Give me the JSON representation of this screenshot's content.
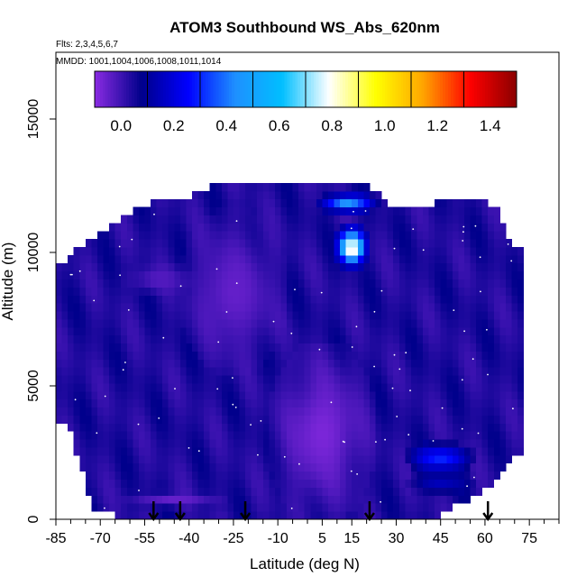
{
  "chart_data": {
    "type": "heatmap",
    "title": "ATOM3 Southbound WS_Abs_620nm",
    "subtitle_flights": "Flts: 2,3,4,5,6,7",
    "subtitle_dates": "MMDD: 1001,1004,1006,1008,1011,1014",
    "xlabel": "Latitude (deg N)",
    "ylabel": "Altitude (m)",
    "xlim": [
      -85,
      85
    ],
    "ylim": [
      0,
      17500
    ],
    "x_ticks": [
      "-85",
      "-70",
      "-55",
      "-40",
      "-25",
      "-10",
      "5",
      "15",
      "30",
      "45",
      "60",
      "75"
    ],
    "x_tick_values": [
      -85,
      -70,
      -55,
      -40,
      -25,
      -10,
      5,
      15,
      30,
      45,
      60,
      75
    ],
    "y_ticks": [
      "0",
      "5000",
      "10000",
      "15000"
    ],
    "y_tick_values": [
      0,
      5000,
      10000,
      15000
    ],
    "colorbar": {
      "range": [
        -0.1,
        1.5
      ],
      "tick_labels": [
        "0.0",
        "0.2",
        "0.4",
        "0.6",
        "0.8",
        "1.0",
        "1.2",
        "1.4"
      ],
      "tick_values": [
        0.0,
        0.2,
        0.4,
        0.6,
        0.8,
        1.0,
        1.2,
        1.4
      ],
      "colors": [
        "#8a2be2",
        "#00008b",
        "#0000ff",
        "#1e90ff",
        "#00bfff",
        "#ffffff",
        "#ffff00",
        "#ffa500",
        "#ff0000",
        "#8b0000"
      ]
    },
    "arrow_latitudes": [
      -52,
      -43,
      -21,
      21,
      61
    ],
    "column_extents": [
      {
        "lat": -81,
        "bottom": 3800,
        "top": 9500
      },
      {
        "lat": -78,
        "bottom": 2500,
        "top": 10000
      },
      {
        "lat": -72,
        "bottom": 500,
        "top": 10500
      },
      {
        "lat": -65,
        "bottom": 300,
        "top": 11000
      },
      {
        "lat": -57,
        "bottom": 200,
        "top": 11500
      },
      {
        "lat": -48,
        "bottom": 100,
        "top": 12000
      },
      {
        "lat": -40,
        "bottom": 0,
        "top": 12000
      },
      {
        "lat": -30,
        "bottom": 0,
        "top": 12500
      },
      {
        "lat": -20,
        "bottom": 0,
        "top": 12500
      },
      {
        "lat": -10,
        "bottom": 0,
        "top": 12500
      },
      {
        "lat": 0,
        "bottom": 0,
        "top": 12500
      },
      {
        "lat": 10,
        "bottom": 0,
        "top": 12500
      },
      {
        "lat": 20,
        "bottom": 0,
        "top": 12500
      },
      {
        "lat": 30,
        "bottom": 0,
        "top": 11500
      },
      {
        "lat": 40,
        "bottom": 0,
        "top": 11500
      },
      {
        "lat": 48,
        "bottom": 500,
        "top": 12000
      },
      {
        "lat": 57,
        "bottom": 1000,
        "top": 12000
      },
      {
        "lat": 64,
        "bottom": 1500,
        "top": 11500
      },
      {
        "lat": 69,
        "bottom": 2500,
        "top": 10000
      }
    ],
    "background_value": 0.04,
    "features": [
      {
        "lat_range": [
          -10,
          20
        ],
        "alt_range": [
          500,
          6000
        ],
        "value": -0.08
      },
      {
        "lat_range": [
          -40,
          -10
        ],
        "alt_range": [
          6000,
          11000
        ],
        "value": -0.05
      },
      {
        "lat_range": [
          10,
          20
        ],
        "alt_range": [
          9500,
          11000
        ],
        "value": 0.65
      },
      {
        "lat_range": [
          5,
          22
        ],
        "alt_range": [
          11500,
          12200
        ],
        "value": 0.45
      },
      {
        "lat_range": [
          12,
          18
        ],
        "alt_range": [
          9800,
          10500
        ],
        "value": 0.85
      },
      {
        "lat_range": [
          35,
          55
        ],
        "alt_range": [
          1800,
          2800
        ],
        "value": 0.3
      },
      {
        "lat_range": [
          35,
          55
        ],
        "alt_range": [
          1000,
          1800
        ],
        "value": 0.15
      },
      {
        "lat_range": [
          -60,
          -30
        ],
        "alt_range": [
          500,
          1000
        ],
        "value": -0.05
      },
      {
        "lat_range": [
          -60,
          -40
        ],
        "alt_range": [
          8500,
          9500
        ],
        "value": -0.03
      }
    ]
  }
}
